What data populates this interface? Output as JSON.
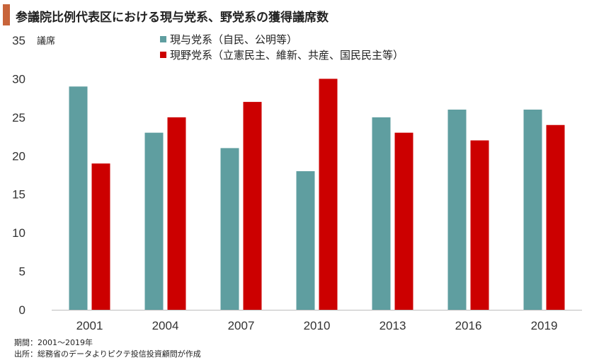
{
  "chart_data": {
    "type": "bar",
    "title": "参議院比例代表区における現与党系、野党系の獲得議席数",
    "ylabel": "議席",
    "xlabel": "",
    "ylim": [
      0,
      35
    ],
    "yticks": [
      0,
      5,
      10,
      15,
      20,
      25,
      30,
      35
    ],
    "grid": false,
    "legend_position": "top",
    "categories": [
      "2001",
      "2004",
      "2007",
      "2010",
      "2013",
      "2016",
      "2019"
    ],
    "series": [
      {
        "name": "現与党系（自民、公明等）",
        "color": "#5f9ea0",
        "values": [
          29,
          23,
          21,
          18,
          25,
          26,
          26
        ]
      },
      {
        "name": "現野党系（立憲民主、維新、共産、国民民主等）",
        "color": "#cc0000",
        "values": [
          19,
          25,
          27,
          30,
          23,
          22,
          24
        ]
      }
    ]
  },
  "footnotes": {
    "period": "期間：2001～2019年",
    "source": "出所：総務省のデータよりピクテ投信投資顧問が作成"
  }
}
